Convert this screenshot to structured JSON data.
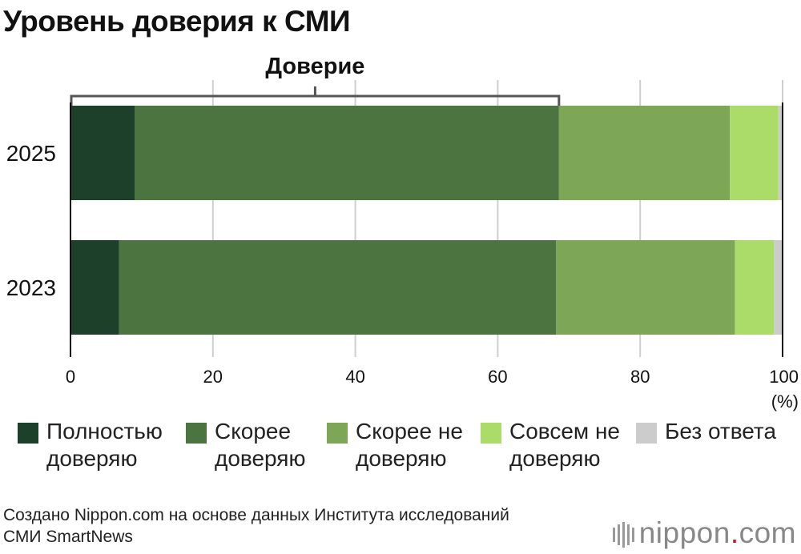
{
  "chart_data": {
    "type": "bar",
    "orientation": "horizontal",
    "stacked": true,
    "title": "Уровень доверия к СМИ",
    "bracket_label": "Доверие",
    "categories": [
      "2025",
      "2023"
    ],
    "series": [
      {
        "name": "Полностью\nдоверяю",
        "color": "#1c402a",
        "values": [
          9.0,
          6.8
        ]
      },
      {
        "name": "Скорее\nдоверяю",
        "color": "#4c7440",
        "values": [
          59.6,
          61.4
        ]
      },
      {
        "name": "Скорее не\nдоверяю",
        "color": "#7da657",
        "values": [
          24.0,
          25.1
        ]
      },
      {
        "name": "Совсем не\nдоверяю",
        "color": "#abdb69",
        "values": [
          6.8,
          5.5
        ]
      },
      {
        "name": "Без ответа",
        "color": "#cccccc",
        "values": [
          0.6,
          1.2
        ]
      }
    ],
    "x_ticks": [
      "0",
      "20",
      "40",
      "60",
      "80",
      "100"
    ],
    "x_unit": "(%)",
    "xlim": [
      0,
      100
    ],
    "grid": true,
    "legend_position": "bottom"
  },
  "source_text": "Создано Nippon.com на основе данных Института исследований\nСМИ SmartNews",
  "brand": {
    "name": "nippon",
    "dot": ".",
    "suffix": "com"
  }
}
